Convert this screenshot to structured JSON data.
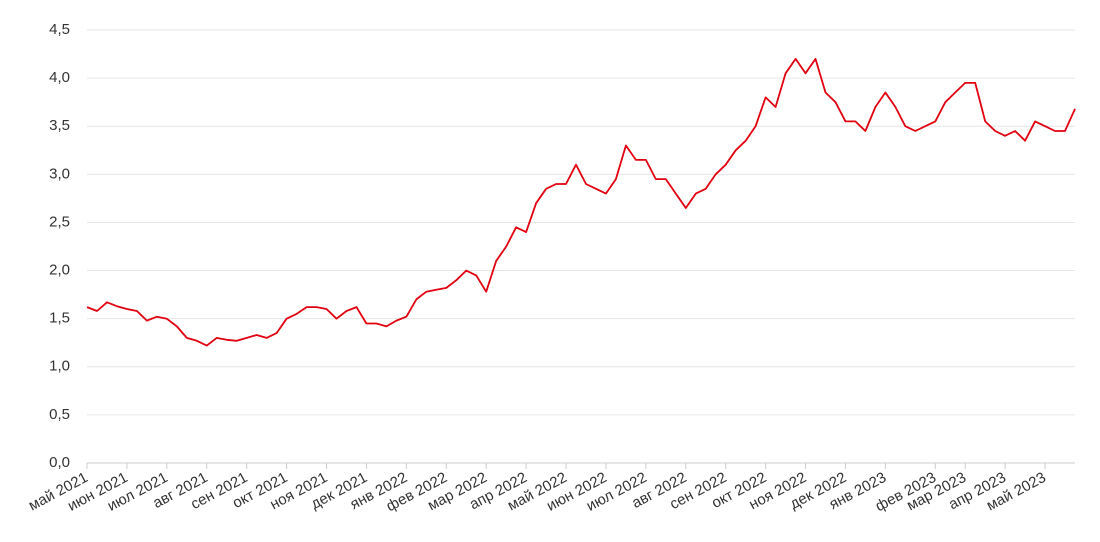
{
  "chart_data": {
    "type": "line",
    "categories": [
      "май 2021",
      null,
      null,
      null,
      "июн 2021",
      null,
      null,
      null,
      "июл 2021",
      null,
      null,
      null,
      "авг 2021",
      null,
      null,
      null,
      "сен 2021",
      null,
      null,
      null,
      "окт 2021",
      null,
      null,
      null,
      "ноя 2021",
      null,
      null,
      null,
      "дек 2021",
      null,
      null,
      null,
      "янв 2022",
      null,
      null,
      null,
      "фев 2022",
      null,
      null,
      null,
      "мар 2022",
      null,
      null,
      null,
      "апр 2022",
      null,
      null,
      null,
      "май 2022",
      null,
      null,
      null,
      "июн 2022",
      null,
      null,
      null,
      "июл 2022",
      null,
      null,
      null,
      "авг 2022",
      null,
      null,
      null,
      "сен 2022",
      null,
      null,
      null,
      "окт 2022",
      null,
      null,
      null,
      "ноя 2022",
      null,
      null,
      null,
      "дек 2022",
      null,
      null,
      null,
      "янв 2023",
      null,
      null,
      null,
      null,
      "фев 2023",
      null,
      null,
      "мар 2023",
      null,
      null,
      null,
      "апр 2023",
      null,
      null,
      null,
      "май 2023",
      null,
      null,
      null
    ],
    "values": [
      1.62,
      1.58,
      1.67,
      1.63,
      1.6,
      1.58,
      1.48,
      1.52,
      1.5,
      1.42,
      1.3,
      1.27,
      1.22,
      1.3,
      1.28,
      1.27,
      1.3,
      1.33,
      1.3,
      1.35,
      1.5,
      1.55,
      1.62,
      1.62,
      1.6,
      1.5,
      1.58,
      1.62,
      1.45,
      1.45,
      1.42,
      1.48,
      1.52,
      1.7,
      1.78,
      1.8,
      1.82,
      1.9,
      2.0,
      1.95,
      1.78,
      2.1,
      2.25,
      2.45,
      2.4,
      2.7,
      2.85,
      2.9,
      2.9,
      3.1,
      2.9,
      2.85,
      2.8,
      2.95,
      3.3,
      3.15,
      3.15,
      2.95,
      2.95,
      2.8,
      2.65,
      2.8,
      2.85,
      3.0,
      3.1,
      3.25,
      3.35,
      3.5,
      3.8,
      3.7,
      4.05,
      4.2,
      4.05,
      4.2,
      3.85,
      3.75,
      3.55,
      3.55,
      3.45,
      3.7,
      3.85,
      3.7,
      3.5,
      3.45,
      3.5,
      3.55,
      3.75,
      3.85,
      3.95,
      3.95,
      3.55,
      3.45,
      3.4,
      3.45,
      3.35,
      3.55,
      3.5,
      3.45,
      3.45,
      3.68
    ],
    "color": "#e0000f",
    "ylim": [
      0,
      4.5
    ],
    "yticks": [
      {
        "value": 0,
        "label": "0,0"
      },
      {
        "value": 0.5,
        "label": "0,5"
      },
      {
        "value": 1,
        "label": "1,0"
      },
      {
        "value": 1.5,
        "label": "1,5"
      },
      {
        "value": 2,
        "label": "2,0"
      },
      {
        "value": 2.5,
        "label": "2,5"
      },
      {
        "value": 3,
        "label": "3,0"
      },
      {
        "value": 3.5,
        "label": "3,5"
      },
      {
        "value": 4,
        "label": "4,0"
      },
      {
        "value": 4.5,
        "label": "4,5"
      }
    ],
    "grid": true
  }
}
